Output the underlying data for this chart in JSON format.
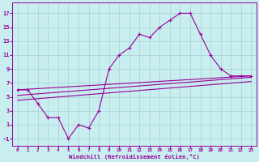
{
  "xlabel": "Windchill (Refroidissement éolien,°C)",
  "bg_color": "#c8eef0",
  "grid_color": "#b0d8dc",
  "line_color": "#990099",
  "xlim": [
    -0.5,
    23.5
  ],
  "ylim": [
    -2,
    18.5
  ],
  "xticks": [
    0,
    1,
    2,
    3,
    4,
    5,
    6,
    7,
    8,
    9,
    10,
    11,
    12,
    13,
    14,
    15,
    16,
    17,
    18,
    19,
    20,
    21,
    22,
    23
  ],
  "yticks": [
    -1,
    1,
    3,
    5,
    7,
    9,
    11,
    13,
    15,
    17
  ],
  "main_x": [
    0,
    1,
    2,
    3,
    4,
    5,
    6,
    7,
    8,
    9,
    10,
    11,
    12,
    13,
    14,
    15,
    16,
    17,
    18,
    19,
    20,
    21,
    22,
    23
  ],
  "main_y": [
    6,
    6,
    4,
    2,
    2,
    -1,
    1,
    0.5,
    3,
    9,
    11,
    12,
    14,
    13.5,
    15,
    16,
    17,
    17,
    14,
    11,
    9,
    8,
    8,
    8
  ],
  "line2_x": [
    0,
    23
  ],
  "line2_y": [
    6.0,
    8.0
  ],
  "line3_x": [
    0,
    23
  ],
  "line3_y": [
    5.2,
    7.8
  ],
  "line4_x": [
    0,
    23
  ],
  "line4_y": [
    4.5,
    7.2
  ]
}
